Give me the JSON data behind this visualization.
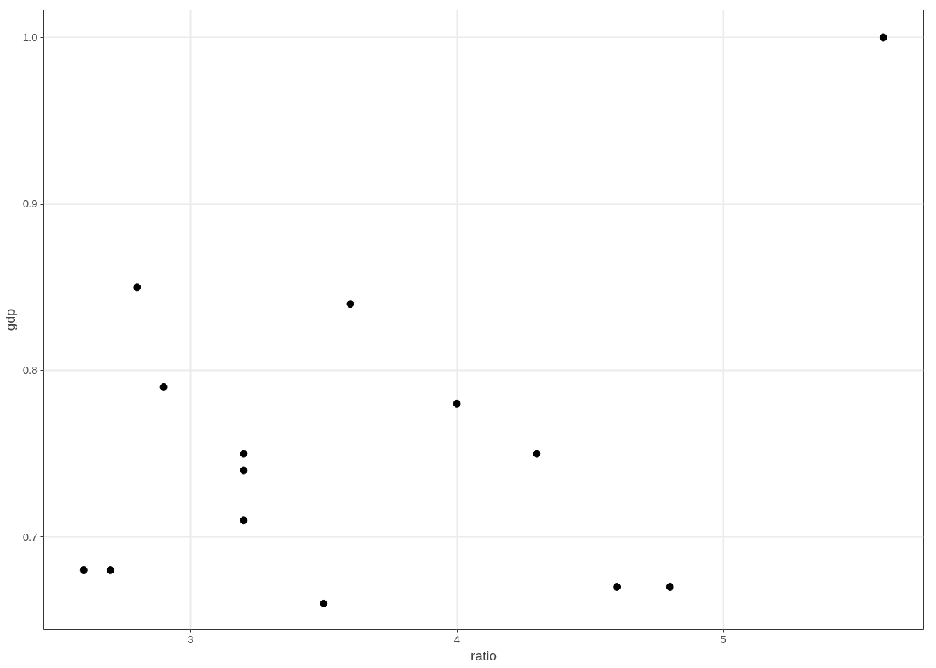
{
  "chart_data": {
    "type": "scatter",
    "xlabel": "ratio",
    "ylabel": "gdp",
    "x": [
      2.6,
      2.7,
      2.8,
      2.9,
      3.2,
      3.2,
      3.2,
      3.5,
      3.6,
      4.0,
      4.3,
      4.6,
      4.8,
      5.6
    ],
    "series": [
      {
        "color": "#000000",
        "values": [
          0.68,
          0.68,
          0.85,
          0.79,
          0.75,
          0.74,
          0.71,
          0.66,
          0.84,
          0.78,
          0.75,
          0.67,
          0.67,
          1.0
        ]
      }
    ],
    "xlim": [
      2.449,
      5.752
    ],
    "ylim": [
      0.6445,
      1.0165
    ],
    "xticks": [
      3,
      4,
      5
    ],
    "yticks": [
      {
        "value": 0.7,
        "label": "0.7"
      },
      {
        "value": 0.8,
        "label": "0.8"
      },
      {
        "value": 0.9,
        "label": "0.9"
      },
      {
        "value": 1.0,
        "label": "1.0"
      }
    ],
    "grid": true,
    "marker": "circle"
  }
}
